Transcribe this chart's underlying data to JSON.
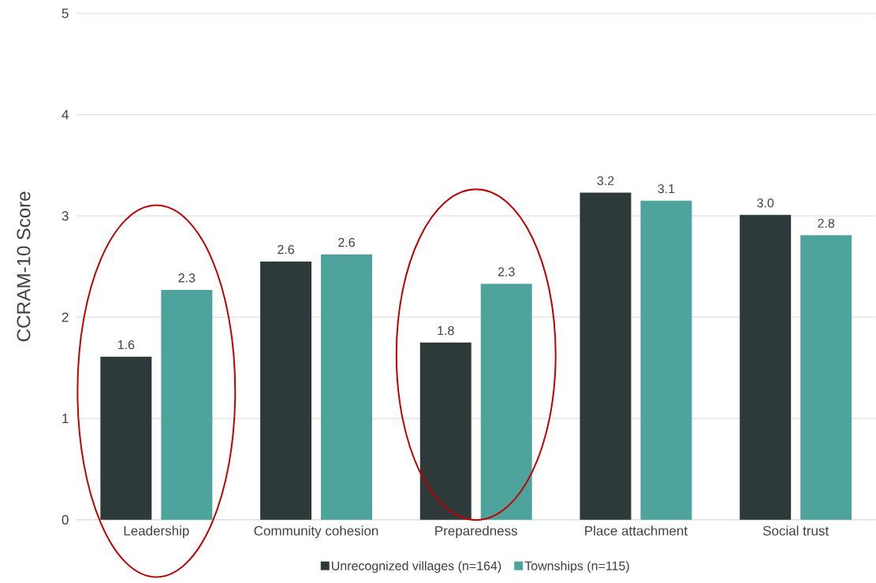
{
  "chart_data": {
    "type": "bar",
    "ylabel": "CCRAM-10 Score",
    "categories": [
      "Leadership",
      "Community cohesion",
      "Preparedness",
      "Place attachment",
      "Social trust"
    ],
    "series": [
      {
        "name": "Unrecognized villages (n=164)",
        "color": "#2e3a3a",
        "values": [
          1.61,
          2.55,
          1.75,
          3.23,
          3.01
        ],
        "value_labels": [
          "1.6",
          "2.6",
          "1.8",
          "3.2",
          "3.0"
        ]
      },
      {
        "name": "Townships (n=115)",
        "color": "#4ea39c",
        "values": [
          2.27,
          2.62,
          2.33,
          3.15,
          2.81
        ],
        "value_labels": [
          "2.3",
          "2.6",
          "2.3",
          "3.1",
          "2.8"
        ]
      }
    ],
    "ylim": [
      0,
      5
    ],
    "yticks": [
      0,
      1,
      2,
      3,
      4,
      5
    ],
    "grid": "y",
    "legend": "bottom"
  }
}
